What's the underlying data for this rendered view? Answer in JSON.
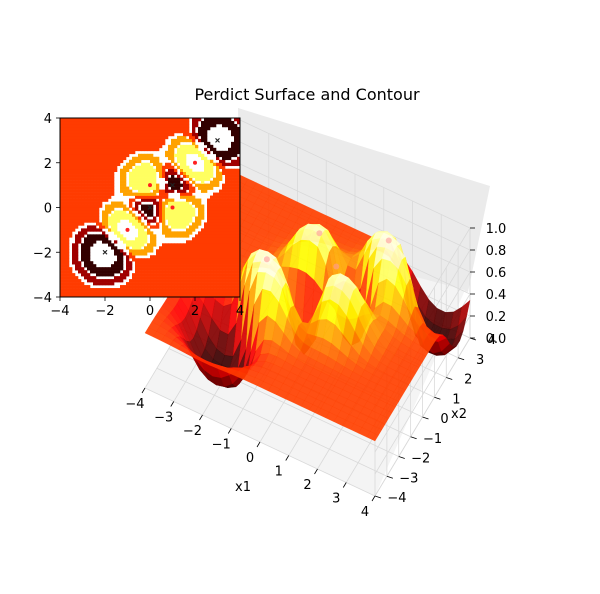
{
  "chart_data": [
    {
      "type": "surface3d",
      "title": "Perdict Surface and Contour",
      "xlabel": "x1",
      "ylabel": "x2",
      "zlabel": "",
      "xlim": [
        -4,
        4
      ],
      "ylim": [
        -4,
        4
      ],
      "zlim": [
        0.0,
        1.0
      ],
      "x_ticks": [
        "−4",
        "−3",
        "−2",
        "−1",
        "0",
        "1",
        "2",
        "3",
        "4"
      ],
      "y_ticks": [
        "−4",
        "−3",
        "−2",
        "−1",
        "0",
        "1",
        "2",
        "3",
        "4"
      ],
      "z_ticks": [
        "0.0",
        "0.2",
        "0.4",
        "0.6",
        "0.8",
        "1.0"
      ],
      "colormap": "hot",
      "grid": true,
      "points": [
        {
          "x": 0,
          "y": 1,
          "z": 1
        },
        {
          "x": 1,
          "y": 0,
          "z": 1
        },
        {
          "x": -1,
          "y": -1,
          "z": 1
        },
        {
          "x": 2,
          "y": 2,
          "z": 1
        }
      ]
    },
    {
      "type": "contour",
      "xlim": [
        -4,
        4
      ],
      "ylim": [
        -4,
        4
      ],
      "x_ticks": [
        "−4",
        "−2",
        "0",
        "2",
        "4"
      ],
      "y_ticks": [
        "−4",
        "−2",
        "0",
        "2",
        "4"
      ],
      "colormap": "hot",
      "points_class1": [
        {
          "x": 0,
          "y": 1
        },
        {
          "x": 1,
          "y": 0
        },
        {
          "x": -1,
          "y": -1
        },
        {
          "x": 2,
          "y": 2
        }
      ],
      "points_class0": [
        {
          "x": 0,
          "y": 0
        },
        {
          "x": 1,
          "y": 1
        },
        {
          "x": -2,
          "y": -2
        },
        {
          "x": 3,
          "y": 3
        }
      ]
    }
  ]
}
